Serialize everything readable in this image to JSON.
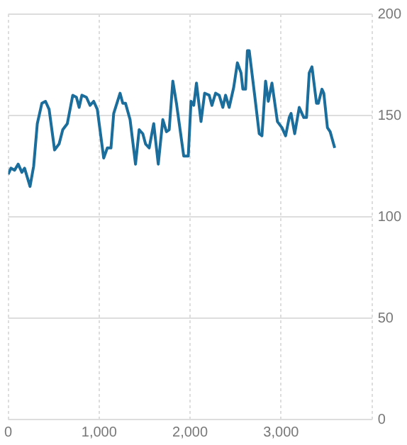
{
  "chart_data": {
    "type": "line",
    "x": [
      0,
      30,
      70,
      110,
      150,
      180,
      240,
      280,
      320,
      370,
      410,
      450,
      510,
      560,
      600,
      650,
      710,
      750,
      780,
      810,
      860,
      900,
      940,
      980,
      1050,
      1090,
      1130,
      1160,
      1230,
      1260,
      1290,
      1340,
      1400,
      1440,
      1480,
      1510,
      1550,
      1600,
      1650,
      1700,
      1740,
      1770,
      1810,
      1850,
      1930,
      1980,
      2010,
      2040,
      2070,
      2120,
      2160,
      2210,
      2240,
      2280,
      2320,
      2360,
      2390,
      2430,
      2480,
      2520,
      2560,
      2580,
      2610,
      2630,
      2650,
      2710,
      2760,
      2790,
      2830,
      2860,
      2900,
      2960,
      3010,
      3050,
      3090,
      3110,
      3150,
      3200,
      3250,
      3280,
      3310,
      3340,
      3390,
      3410,
      3450,
      3470,
      3510,
      3540,
      3590
    ],
    "series": [
      {
        "color": "#1b6d9c",
        "values": [
          121,
          124,
          123,
          126,
          122,
          124,
          115,
          125,
          146,
          156,
          157,
          153,
          133,
          136,
          143,
          146,
          160,
          159,
          154,
          160,
          159,
          155,
          157,
          153,
          129,
          134,
          134,
          151,
          161,
          156,
          156,
          148,
          126,
          143,
          141,
          136,
          134,
          146,
          126,
          148,
          142,
          143,
          167,
          156,
          130,
          130,
          157,
          155,
          166,
          147,
          161,
          160,
          155,
          161,
          160,
          154,
          160,
          154,
          164,
          176,
          171,
          163,
          163,
          182,
          182,
          160,
          141,
          140,
          167,
          157,
          166,
          147,
          144,
          140,
          149,
          151,
          141,
          154,
          149,
          149,
          171,
          174,
          156,
          156,
          163,
          161,
          144,
          142,
          134
        ]
      }
    ],
    "xlim": [
      0,
      4000
    ],
    "xticks": [
      {
        "value": 0,
        "label": "0"
      },
      {
        "value": 1000,
        "label": "1,000"
      },
      {
        "value": 2000,
        "label": "2,000"
      },
      {
        "value": 3000,
        "label": "3,000"
      },
      {
        "value": 4000,
        "label": null
      }
    ],
    "ylim": [
      0,
      200
    ],
    "yticks": [
      0,
      50,
      100,
      150,
      200
    ],
    "grid": true,
    "legend": false,
    "marker": "none",
    "line_style": "solid"
  }
}
